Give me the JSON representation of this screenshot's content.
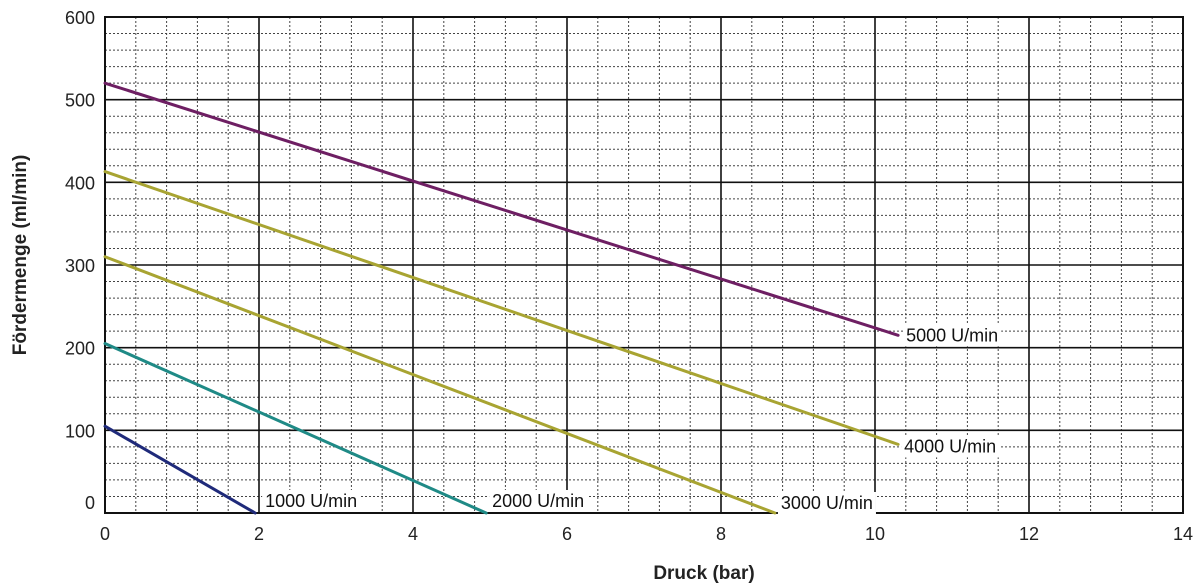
{
  "chart_data": {
    "type": "line",
    "xlabel": "Druck (bar)",
    "ylabel": "Fördermenge (ml/min)",
    "xlim": [
      0,
      14
    ],
    "ylim": [
      0,
      600
    ],
    "x_ticks": [
      "0",
      "2",
      "4",
      "6",
      "8",
      "10",
      "12",
      "14"
    ],
    "y_ticks": [
      "0",
      "100",
      "200",
      "300",
      "400",
      "500",
      "600"
    ],
    "grid": true,
    "series": [
      {
        "name": "1000 U/min",
        "color": "#1f2a7a",
        "x": [
          0,
          1.95
        ],
        "y": [
          105,
          0
        ]
      },
      {
        "name": "2000 U/min",
        "color": "#1f8a86",
        "x": [
          0,
          4.95
        ],
        "y": [
          205,
          0
        ]
      },
      {
        "name": "3000 U/min",
        "color": "#a8a432",
        "x": [
          0,
          8.7
        ],
        "y": [
          310,
          0
        ]
      },
      {
        "name": "4000 U/min",
        "color": "#a8a432",
        "x": [
          0,
          10.3
        ],
        "y": [
          413,
          83
        ]
      },
      {
        "name": "5000 U/min",
        "color": "#6e1f63",
        "x": [
          0,
          10.3
        ],
        "y": [
          520,
          215
        ]
      }
    ]
  }
}
